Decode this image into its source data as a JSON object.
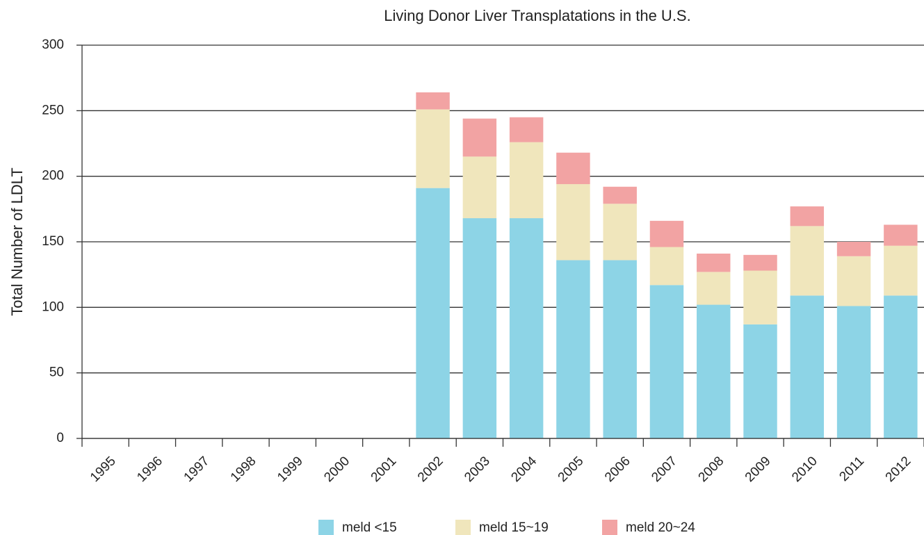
{
  "chart_data": {
    "type": "stacked-bar",
    "title": "Living Donor Liver Transplatations in the U.S.",
    "y_label": "Total Number of LDLT",
    "categories": [
      "1995",
      "1996",
      "1997",
      "1998",
      "1999",
      "2000",
      "2001",
      "2002",
      "2003",
      "2004",
      "2005",
      "2006",
      "2007",
      "2008",
      "2009",
      "2010",
      "2011",
      "2012"
    ],
    "series": [
      {
        "name": "meld <15",
        "color": "#8dd4e6",
        "values": [
          null,
          null,
          null,
          null,
          null,
          null,
          null,
          191,
          168,
          168,
          136,
          136,
          117,
          102,
          87,
          109,
          101,
          109
        ]
      },
      {
        "name": "meld 15~19",
        "color": "#f0e6bc",
        "values": [
          null,
          null,
          null,
          null,
          null,
          null,
          null,
          60,
          47,
          58,
          58,
          43,
          29,
          25,
          41,
          53,
          38,
          38
        ]
      },
      {
        "name": "meld 20~24",
        "color": "#f2a3a3",
        "values": [
          null,
          null,
          null,
          null,
          null,
          null,
          null,
          13,
          29,
          19,
          24,
          13,
          20,
          14,
          12,
          15,
          11,
          16
        ]
      }
    ],
    "ylim": [
      0,
      300
    ],
    "yticks": [
      0,
      50,
      100,
      150,
      200,
      250,
      300
    ],
    "grid": true,
    "legend": "bottom"
  }
}
